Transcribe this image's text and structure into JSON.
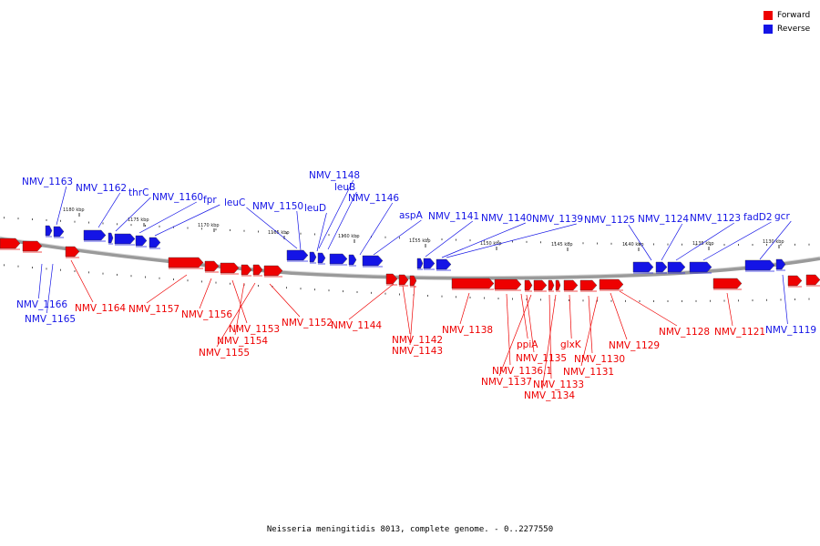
{
  "caption": "Neisseria meningitidis 8013, complete genome. - 0..2277550",
  "colors": {
    "forward": "#ee0000",
    "reverse": "#1414e6",
    "backbone": "#8c8c8c"
  },
  "legend": [
    {
      "label": "Forward",
      "strand": "forward"
    },
    {
      "label": "Reverse",
      "strand": "reverse"
    }
  ],
  "scale_ticks": [
    "1180 kbp",
    "1175 kbp",
    "1170 kbp",
    "1165 kbp",
    "1160 kbp",
    "1155 kbp",
    "1150 kbp",
    "1145 kbp",
    "1140 kbp",
    "1135 kbp",
    "1130 kbp"
  ],
  "reverse_genes": [
    {
      "name": "NMV_1163"
    },
    {
      "name": "NMV_1162"
    },
    {
      "name": "thrC"
    },
    {
      "name": "NMV_1160"
    },
    {
      "name": "fpr"
    },
    {
      "name": "leuC"
    },
    {
      "name": "NMV_1150"
    },
    {
      "name": "NMV_1148"
    },
    {
      "name": "leuB"
    },
    {
      "name": "leuD"
    },
    {
      "name": "NMV_1146"
    },
    {
      "name": "aspA"
    },
    {
      "name": "NMV_1141"
    },
    {
      "name": "NMV_1140"
    },
    {
      "name": "NMV_1139"
    },
    {
      "name": "NMV_1125"
    },
    {
      "name": "NMV_1124"
    },
    {
      "name": "NMV_1123"
    },
    {
      "name": "fadD2"
    },
    {
      "name": "gcr"
    },
    {
      "name": "NMV_1166"
    },
    {
      "name": "NMV_1165"
    },
    {
      "name": "NMV_1119"
    }
  ],
  "forward_genes": [
    {
      "name": "NMV_1164"
    },
    {
      "name": "NMV_1157"
    },
    {
      "name": "NMV_1156"
    },
    {
      "name": "NMV_1153"
    },
    {
      "name": "NMV_1154"
    },
    {
      "name": "NMV_1155"
    },
    {
      "name": "NMV_1152"
    },
    {
      "name": "NMV_1144"
    },
    {
      "name": "NMV_1142"
    },
    {
      "name": "NMV_1143"
    },
    {
      "name": "NMV_1138"
    },
    {
      "name": "ppiA"
    },
    {
      "name": "NMV_1135"
    },
    {
      "name": "NMV_1136.1"
    },
    {
      "name": "NMV_1137"
    },
    {
      "name": "glxK"
    },
    {
      "name": "NMV_1133"
    },
    {
      "name": "NMV_1134"
    },
    {
      "name": "NMV_1130"
    },
    {
      "name": "NMV_1131"
    },
    {
      "name": "NMV_1129"
    },
    {
      "name": "NMV_1128"
    },
    {
      "name": "NMV_1121"
    }
  ]
}
